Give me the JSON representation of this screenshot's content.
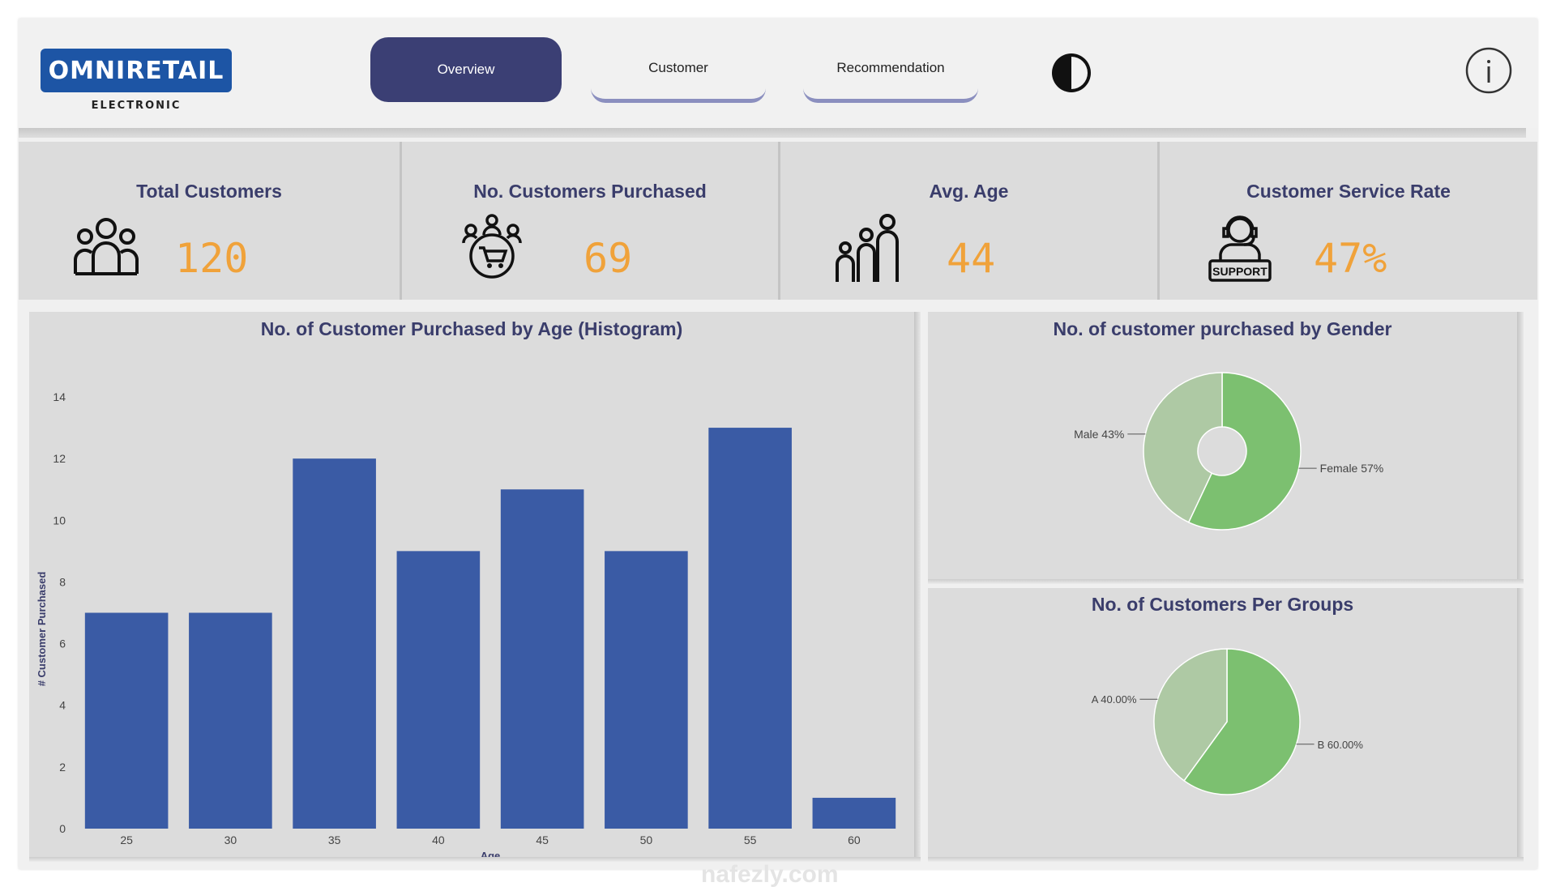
{
  "brand": {
    "name": "OMNIRETAIL",
    "sub": "ELECTRONIC",
    "color": "#1d55a5"
  },
  "nav": {
    "tabs": [
      {
        "label": "Overview",
        "active": true
      },
      {
        "label": "Customer",
        "active": false
      },
      {
        "label": "Recommendation",
        "active": false
      }
    ],
    "theme_icon": "contrast-icon",
    "info_icon": "info-icon"
  },
  "kpis": [
    {
      "title": "Total Customers",
      "value": "120",
      "icon": "people-group-icon"
    },
    {
      "title": "No. Customers Purchased",
      "value": "69",
      "icon": "shopping-cart-people-icon"
    },
    {
      "title": "Avg. Age",
      "value": "44",
      "icon": "family-icon"
    },
    {
      "title": "Customer Service Rate",
      "value": "47%",
      "icon": "support-agent-icon"
    }
  ],
  "colors": {
    "accent": "#3b3f74",
    "kpi_value": "#f0a23a",
    "bar": "#3a5ba5",
    "pie_light": "#aec9a4",
    "pie_dark": "#7cc070"
  },
  "chart_data": [
    {
      "type": "bar",
      "title": "No. of Customer Purchased by Age (Histogram)",
      "xlabel": "Age",
      "ylabel": "# Customer Purchased",
      "categories": [
        "25",
        "30",
        "35",
        "40",
        "45",
        "50",
        "55",
        "60"
      ],
      "values": [
        7,
        7,
        12,
        9,
        11,
        9,
        13,
        1
      ],
      "ylim": [
        0,
        14
      ],
      "yticks": [
        "0",
        "2",
        "4",
        "6",
        "8",
        "10",
        "12",
        "14"
      ]
    },
    {
      "type": "pie",
      "title": "No. of customer purchased by Gender",
      "donut": true,
      "slices": [
        {
          "label": "Female 57%",
          "value": 57,
          "color": "#7cc070"
        },
        {
          "label": "Male 43%",
          "value": 43,
          "color": "#aec9a4"
        }
      ]
    },
    {
      "type": "pie",
      "title": "No. of Customers Per Groups",
      "donut": false,
      "slices": [
        {
          "label": "B 60.00%",
          "value": 60,
          "color": "#7cc070"
        },
        {
          "label": "A 40.00%",
          "value": 40,
          "color": "#aec9a4"
        }
      ]
    }
  ],
  "watermark": "nafezly.com"
}
